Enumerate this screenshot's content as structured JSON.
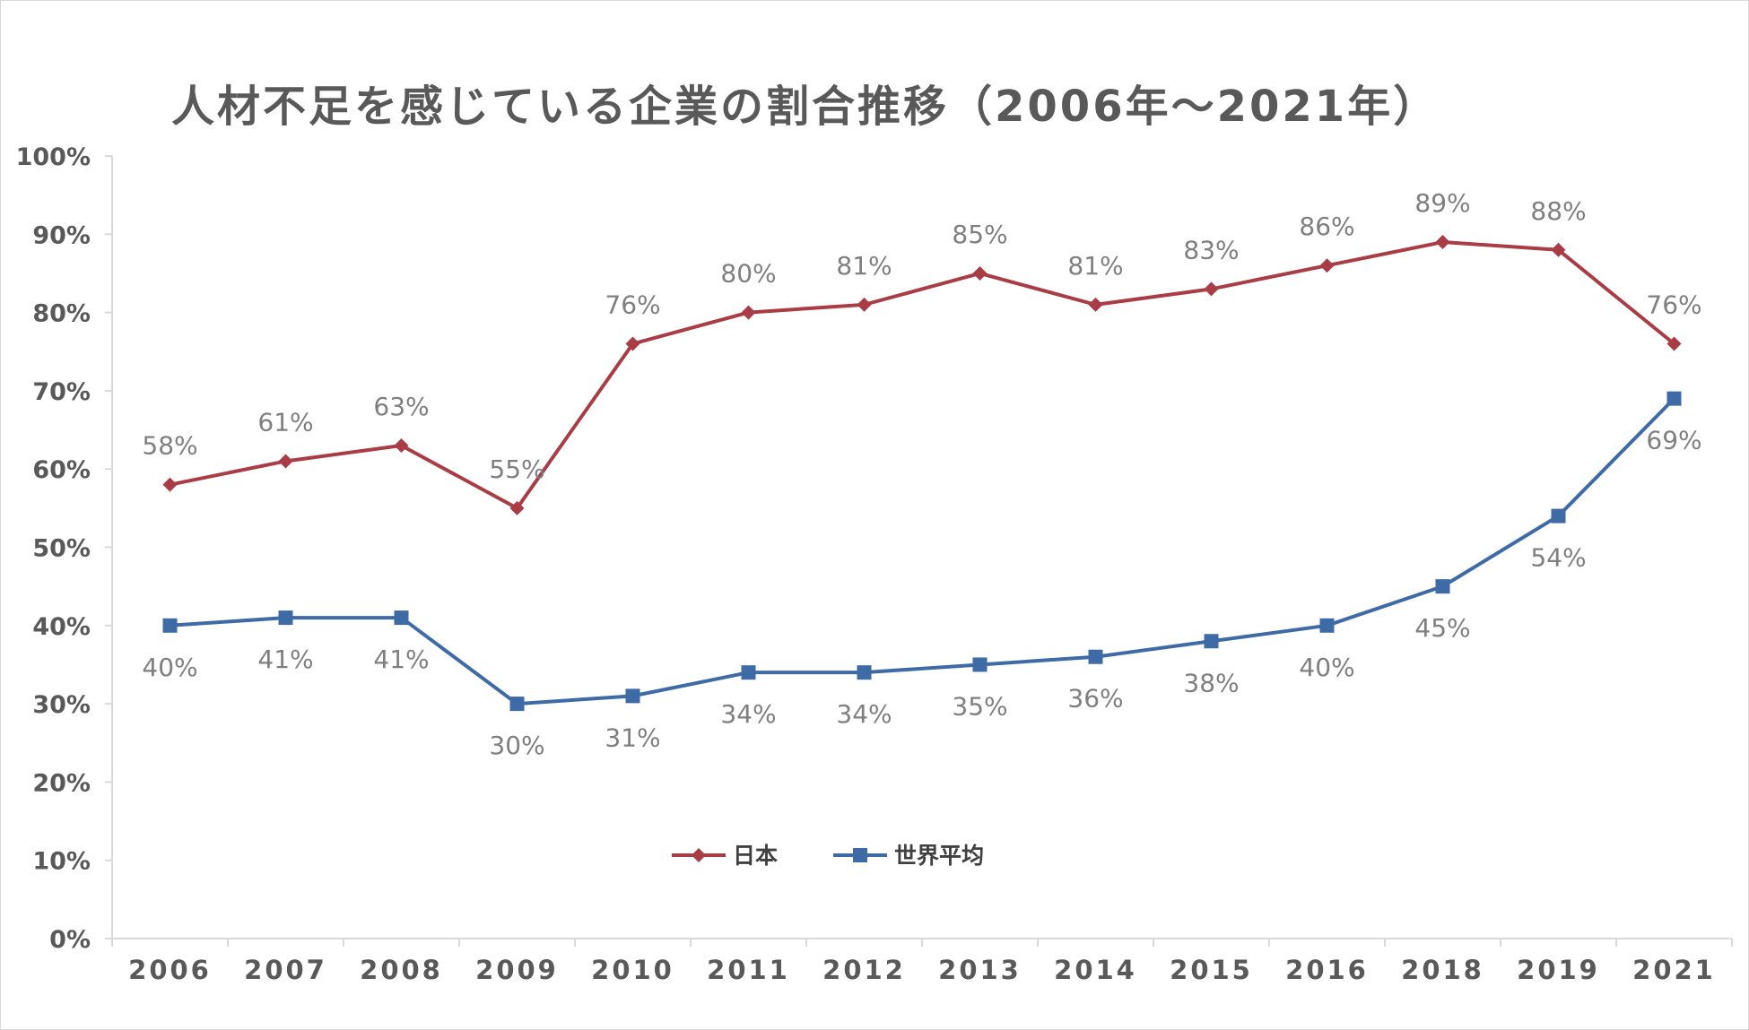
{
  "chart_data": {
    "type": "line",
    "title": "人材不足を感じている企業の割合推移（2006年～2021年）",
    "categories": [
      "2006",
      "2007",
      "2008",
      "2009",
      "2010",
      "2011",
      "2012",
      "2013",
      "2014",
      "2015",
      "2016",
      "2018",
      "2019",
      "2021"
    ],
    "series": [
      {
        "name": "日本",
        "color": "#a93c45",
        "marker": "diamond",
        "values": [
          58,
          61,
          63,
          55,
          76,
          80,
          81,
          85,
          81,
          83,
          86,
          89,
          88,
          76
        ],
        "labels": [
          "58%",
          "61%",
          "63%",
          "55%",
          "76%",
          "80%",
          "81%",
          "85%",
          "81%",
          "83%",
          "86%",
          "89%",
          "88%",
          "76%"
        ],
        "label_position": "above"
      },
      {
        "name": "世界平均",
        "color": "#3e6aa6",
        "marker": "square",
        "values": [
          40,
          41,
          41,
          30,
          31,
          34,
          34,
          35,
          36,
          38,
          40,
          45,
          54,
          69
        ],
        "labels": [
          "40%",
          "41%",
          "41%",
          "30%",
          "31%",
          "34%",
          "34%",
          "35%",
          "36%",
          "38%",
          "40%",
          "45%",
          "54%",
          "69%"
        ],
        "label_position": "below"
      }
    ],
    "ylim": [
      0,
      100
    ],
    "yticks": [
      "0%",
      "10%",
      "20%",
      "30%",
      "40%",
      "50%",
      "60%",
      "70%",
      "80%",
      "90%",
      "100%"
    ],
    "grid": false,
    "legend": "bottom-center"
  }
}
